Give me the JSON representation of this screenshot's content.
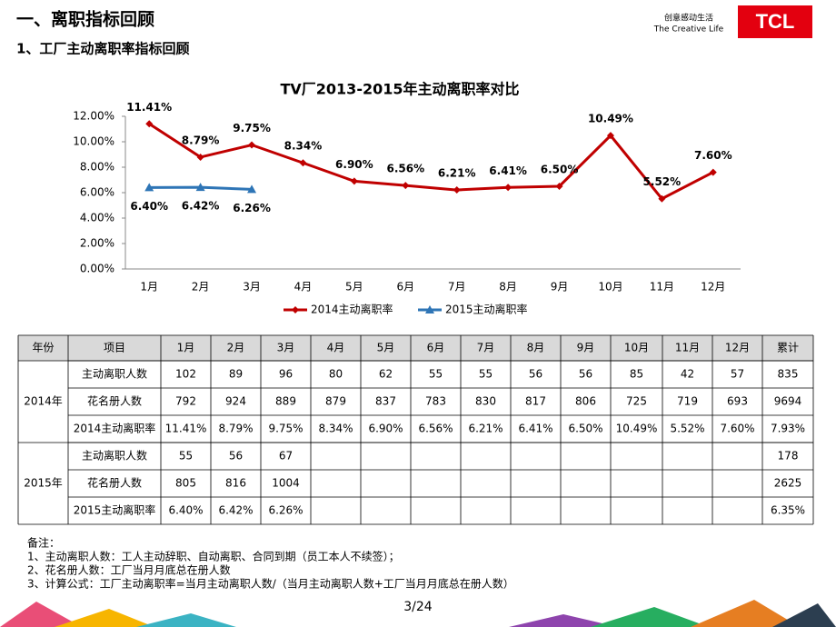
{
  "header": {
    "title": "一、离职指标回顾",
    "subtitle": "1、工厂主动离职率指标回顾",
    "slogan_cn": "创意感动生活",
    "slogan_en": "The Creative Life",
    "logo": "TCL"
  },
  "chart_data": {
    "type": "line",
    "title": "TV厂2013-2015年主动离职率对比",
    "categories": [
      "1月",
      "2月",
      "3月",
      "4月",
      "5月",
      "6月",
      "7月",
      "8月",
      "9月",
      "10月",
      "11月",
      "12月"
    ],
    "series": [
      {
        "name": "2014主动离职率",
        "color": "#c00000",
        "marker": "diamond",
        "values": [
          11.41,
          8.79,
          9.75,
          8.34,
          6.9,
          6.56,
          6.21,
          6.41,
          6.5,
          10.49,
          5.52,
          7.6
        ],
        "value_labels": [
          "11.41%",
          "8.79%",
          "9.75%",
          "8.34%",
          "6.90%",
          "6.56%",
          "6.21%",
          "6.41%",
          "6.50%",
          "10.49%",
          "5.52%",
          "7.60%"
        ]
      },
      {
        "name": "2015主动离职率",
        "color": "#2e75b6",
        "marker": "triangle",
        "values": [
          6.4,
          6.42,
          6.26,
          null,
          null,
          null,
          null,
          null,
          null,
          null,
          null,
          null
        ],
        "value_labels": [
          "6.40%",
          "6.42%",
          "6.26%",
          null,
          null,
          null,
          null,
          null,
          null,
          null,
          null,
          null
        ]
      }
    ],
    "ylim": [
      0,
      12
    ],
    "yticks": [
      {
        "value": 0,
        "label": "0.00%"
      },
      {
        "value": 2,
        "label": "2.00%"
      },
      {
        "value": 4,
        "label": "4.00%"
      },
      {
        "value": 6,
        "label": "6.00%"
      },
      {
        "value": 8,
        "label": "8.00%"
      },
      {
        "value": 10,
        "label": "10.00%"
      },
      {
        "value": 12,
        "label": "12.00%"
      }
    ],
    "grid": false,
    "legend": "bottom"
  },
  "table": {
    "header": [
      "年份",
      "项目",
      "1月",
      "2月",
      "3月",
      "4月",
      "5月",
      "6月",
      "7月",
      "8月",
      "9月",
      "10月",
      "11月",
      "12月",
      "累计"
    ],
    "groups": [
      {
        "year": "2014年",
        "rows": [
          {
            "item": "主动离职人数",
            "values": [
              "102",
              "89",
              "96",
              "80",
              "62",
              "55",
              "55",
              "56",
              "56",
              "85",
              "42",
              "57"
            ],
            "total": "835"
          },
          {
            "item": "花名册人数",
            "values": [
              "792",
              "924",
              "889",
              "879",
              "837",
              "783",
              "830",
              "817",
              "806",
              "725",
              "719",
              "693"
            ],
            "total": "9694"
          },
          {
            "item": "2014主动离职率",
            "values": [
              "11.41%",
              "8.79%",
              "9.75%",
              "8.34%",
              "6.90%",
              "6.56%",
              "6.21%",
              "6.41%",
              "6.50%",
              "10.49%",
              "5.52%",
              "7.60%"
            ],
            "total": "7.93%"
          }
        ]
      },
      {
        "year": "2015年",
        "rows": [
          {
            "item": "主动离职人数",
            "values": [
              "55",
              "56",
              "67"
            ],
            "total": "178"
          },
          {
            "item": "花名册人数",
            "values": [
              "805",
              "816",
              "1004"
            ],
            "total": "2625"
          },
          {
            "item": "2015主动离职率",
            "values": [
              "6.40%",
              "6.42%",
              "6.26%"
            ],
            "total": "6.35%"
          }
        ]
      }
    ]
  },
  "notes": {
    "title": "备注：",
    "lines": [
      "1、主动离职人数：工人主动辞职、自动离职、合同到期（员工本人不续签）；",
      "2、花名册人数：工厂当月月底总在册人数",
      "3、计算公式：工厂主动离职率=当月主动离职人数/（当月主动离职人数+工厂当月月底总在册人数）"
    ]
  },
  "page_number": "3/24"
}
